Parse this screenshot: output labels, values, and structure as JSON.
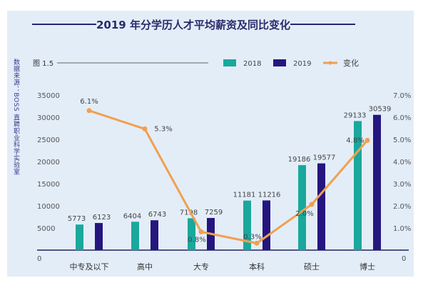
{
  "chart_data": {
    "type": "bar",
    "title": "2019 年分学历人才平均薪资及同比变化",
    "figure_label": "图 1.5",
    "source": "数据来源：BOSS 直聘职业科学实验室",
    "categories": [
      "中专及以下",
      "高中",
      "大专",
      "本科",
      "硕士",
      "博士"
    ],
    "series": [
      {
        "name": "2018",
        "type": "bar",
        "color": "#1aa89c",
        "values": [
          5773,
          6404,
          7198,
          11181,
          19186,
          29133
        ]
      },
      {
        "name": "2019",
        "type": "bar",
        "color": "#25167f",
        "values": [
          6123,
          6743,
          7259,
          11216,
          19577,
          30539
        ]
      },
      {
        "name": "变化",
        "type": "line",
        "axis": "right",
        "color": "#f0a050",
        "values": [
          6.1,
          5.3,
          0.8,
          0.3,
          2.0,
          4.8
        ],
        "labels": [
          "6.1%",
          "5.3%",
          "0.8%",
          "0.3%",
          "2.0%",
          "4.8%"
        ]
      }
    ],
    "y_left": {
      "ticks": [
        "0",
        "5000",
        "10000",
        "15000",
        "20000",
        "25000",
        "30000",
        "35000"
      ],
      "range": [
        0,
        35000
      ]
    },
    "y_right": {
      "ticks": [
        "0",
        "1.0%",
        "2.0%",
        "3.0%",
        "4.0%",
        "5.0%",
        "6.0%",
        "7.0%"
      ],
      "range": [
        0,
        7
      ]
    },
    "legend": "top-right",
    "grid": false
  }
}
